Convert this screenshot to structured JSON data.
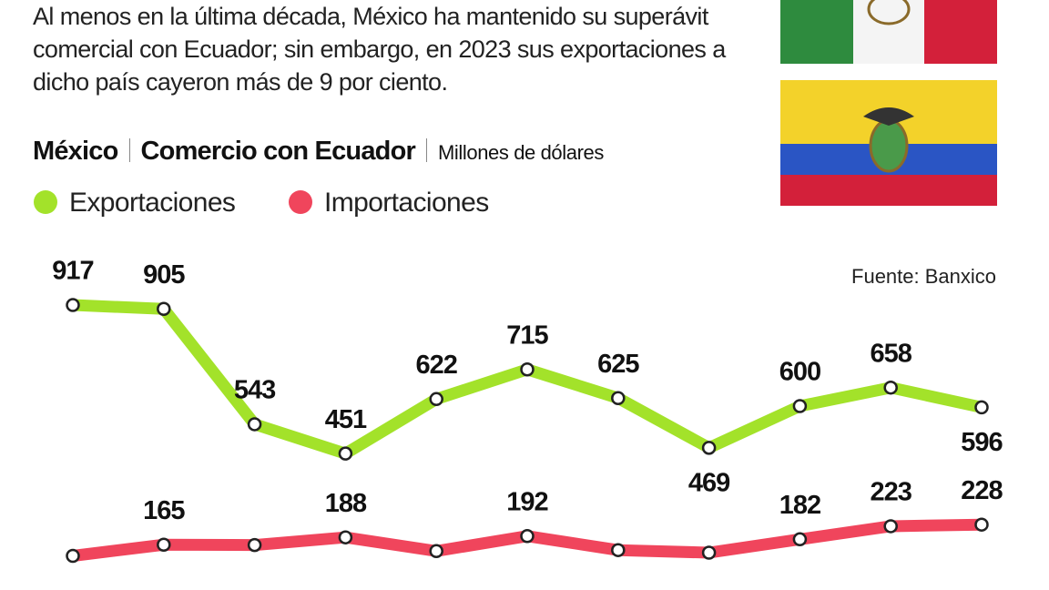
{
  "header": {
    "text": "Al menos en la última década, México ha mantenido su superávit comercial con Ecuador; sin embargo, en 2023 sus exportaciones a dicho país cayeron más de 9 por ciento.",
    "country": "México",
    "topic": "Comercio con Ecuador",
    "unit": "Millones de dólares"
  },
  "chart_data": {
    "type": "line",
    "source": "Fuente: Banxico",
    "ylim": [
      0,
      1000
    ],
    "series": [
      {
        "name": "Exportaciones",
        "color": "#a3e22a",
        "values": [
          917,
          905,
          543,
          451,
          622,
          715,
          625,
          469,
          600,
          658,
          596
        ],
        "value_labels": [
          "917",
          "905",
          "543",
          "451",
          "622",
          "715",
          "625",
          "469",
          "600",
          "658",
          "596"
        ]
      },
      {
        "name": "Importaciones",
        "color": "#f0455c",
        "values": [
          130,
          165,
          164,
          188,
          145,
          192,
          148,
          140,
          182,
          223,
          228
        ],
        "value_labels": [
          null,
          "165",
          null,
          "188",
          null,
          "192",
          null,
          null,
          "182",
          "223",
          "228"
        ]
      }
    ]
  }
}
